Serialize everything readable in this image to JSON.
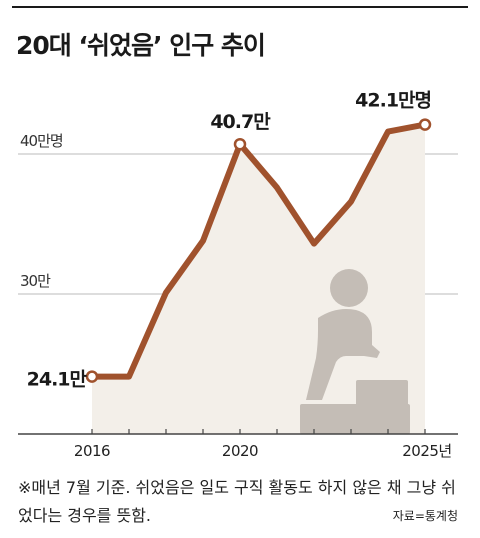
{
  "title": "20대 ‘쉬었음’ 인구 추이",
  "note": "※매년 7월 기준. 쉬었음은 일도 구직 활동도 하지 않은 채 그냥 쉬었다는 경우를 뜻함.",
  "source": "자료=통계청",
  "chart_data": {
    "type": "line",
    "title": "20대 ‘쉬었음’ 인구 추이",
    "x": [
      2016,
      2017,
      2018,
      2019,
      2020,
      2021,
      2022,
      2023,
      2024,
      2025
    ],
    "series": [
      {
        "values": [
          24.1,
          24.1,
          30.1,
          33.8,
          40.7,
          37.6,
          33.6,
          36.6,
          41.6,
          42.1
        ]
      }
    ],
    "ylim": [
      20,
      46
    ],
    "y_ticks": [
      {
        "value": 30,
        "label": "30만"
      },
      {
        "value": 40,
        "label": "40만명"
      }
    ],
    "x_ticks": [
      {
        "value": 2016,
        "label": "2016"
      },
      {
        "value": 2020,
        "label": "2020"
      },
      {
        "value": 2025,
        "label": "2025년"
      }
    ],
    "annotations": [
      {
        "x": 2016,
        "y": 24.1,
        "label": "24.1만"
      },
      {
        "x": 2020,
        "y": 40.7,
        "label": "40.7만"
      },
      {
        "x": 2025,
        "y": 42.1,
        "label": "42.1만명"
      }
    ],
    "grid": true,
    "colors": {
      "line": "#a0522d",
      "area": "#f3efe9",
      "grid": "#bbbbbb",
      "figure": "#c4bdb6"
    },
    "illustration": "seated-resting-person-icon"
  }
}
